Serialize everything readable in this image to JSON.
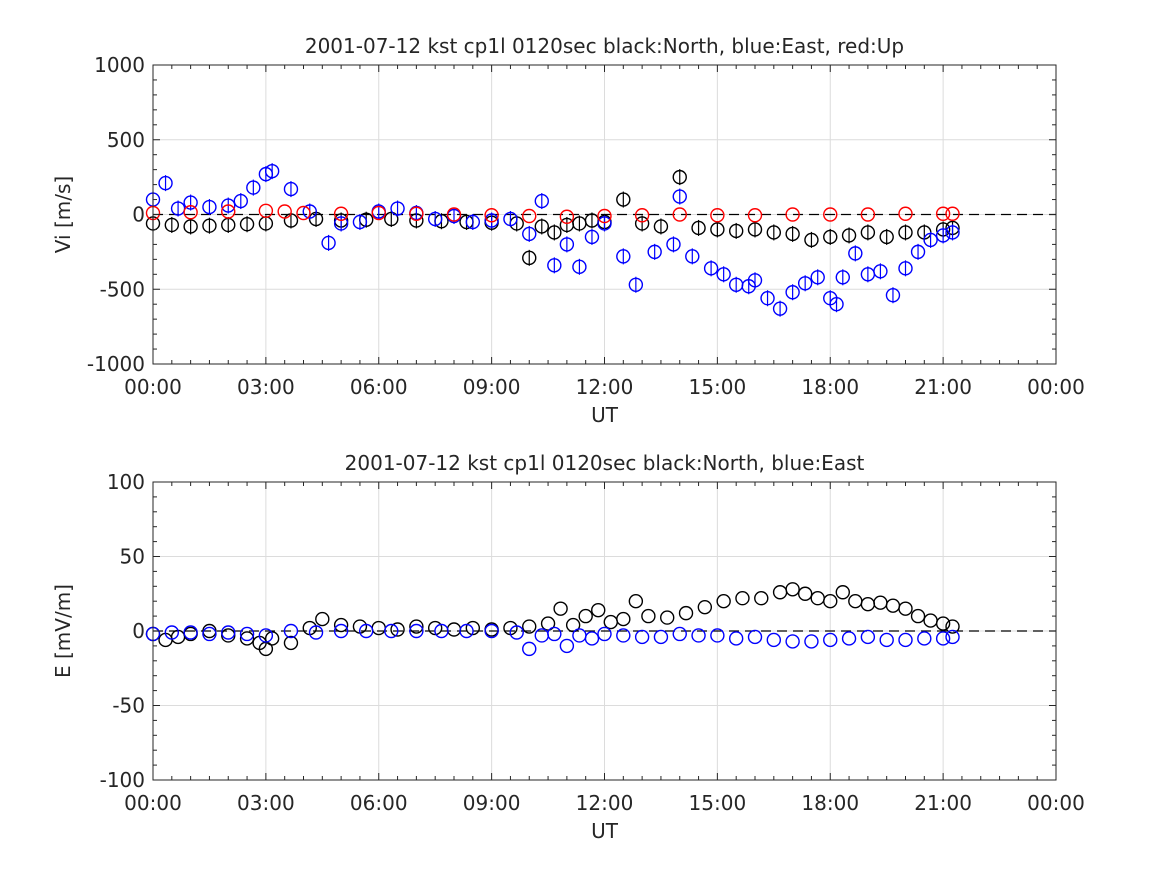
{
  "chart_data": [
    {
      "type": "scatter",
      "title": "2001-07-12 kst cp1l 0120sec black:North, blue:East, red:Up",
      "xlabel": "UT",
      "ylabel": "Vi [m/s]",
      "ylim": [
        -1000,
        1000
      ],
      "yticks": [
        "1000",
        "500",
        "0",
        "-500",
        "-1000"
      ],
      "ytick_values": [
        1000,
        500,
        0,
        -500,
        -1000
      ],
      "xlim_hours": [
        0,
        24
      ],
      "xticks": [
        "00:00",
        "03:00",
        "06:00",
        "09:00",
        "12:00",
        "15:00",
        "18:00",
        "21:00",
        "00:00"
      ],
      "grid": true,
      "zero_line": "dashed",
      "marker": "open circle with error bar",
      "series": [
        {
          "color": "#000000",
          "x": [
            "00:00",
            "00:30",
            "01:00",
            "01:30",
            "02:00",
            "02:30",
            "03:00",
            "03:40",
            "04:20",
            "05:00",
            "05:40",
            "06:20",
            "07:00",
            "07:40",
            "08:20",
            "09:00",
            "09:40",
            "10:00",
            "10:20",
            "10:40",
            "11:00",
            "11:20",
            "11:40",
            "12:00",
            "12:30",
            "13:00",
            "13:30",
            "14:00",
            "14:30",
            "15:00",
            "15:30",
            "16:00",
            "16:30",
            "17:00",
            "17:30",
            "18:00",
            "18:30",
            "19:00",
            "19:30",
            "20:00",
            "20:30",
            "21:00",
            "21:15"
          ],
          "y": [
            -60,
            -70,
            -80,
            -75,
            -70,
            -65,
            -60,
            -40,
            -30,
            -40,
            -35,
            -30,
            -40,
            -45,
            -50,
            -55,
            -60,
            -290,
            -80,
            -120,
            -70,
            -60,
            -40,
            -50,
            100,
            -60,
            -80,
            250,
            -90,
            -100,
            -110,
            -100,
            -120,
            -130,
            -170,
            -150,
            -140,
            -120,
            -150,
            -120,
            -120,
            -100,
            -90
          ]
        },
        {
          "color": "#0000ff",
          "x": [
            "00:00",
            "00:20",
            "00:40",
            "01:00",
            "01:30",
            "02:00",
            "02:20",
            "02:40",
            "03:00",
            "03:10",
            "03:40",
            "04:10",
            "04:40",
            "05:00",
            "05:30",
            "06:00",
            "06:30",
            "07:00",
            "07:30",
            "08:00",
            "08:30",
            "09:00",
            "09:30",
            "10:00",
            "10:20",
            "10:40",
            "11:00",
            "11:20",
            "11:40",
            "12:00",
            "12:30",
            "12:50",
            "13:20",
            "13:50",
            "14:00",
            "14:20",
            "14:50",
            "15:10",
            "15:30",
            "15:50",
            "16:00",
            "16:20",
            "16:40",
            "17:00",
            "17:20",
            "17:40",
            "18:00",
            "18:10",
            "18:20",
            "18:40",
            "19:00",
            "19:20",
            "19:40",
            "20:00",
            "20:20",
            "20:40",
            "21:00",
            "21:15"
          ],
          "y": [
            100,
            210,
            40,
            80,
            50,
            60,
            90,
            180,
            270,
            290,
            170,
            20,
            -190,
            -60,
            -50,
            20,
            40,
            10,
            -30,
            -10,
            -50,
            -40,
            -30,
            -130,
            90,
            -340,
            -200,
            -350,
            -150,
            -60,
            -280,
            -470,
            -250,
            -200,
            120,
            -280,
            -360,
            -400,
            -470,
            -480,
            -440,
            -560,
            -630,
            -520,
            -460,
            -420,
            -560,
            -600,
            -420,
            -260,
            -400,
            -380,
            -540,
            -360,
            -250,
            -170,
            -140,
            -120
          ]
        },
        {
          "color": "#ff0000",
          "x": [
            "00:00",
            "01:00",
            "02:00",
            "03:00",
            "03:30",
            "04:00",
            "05:00",
            "06:00",
            "07:00",
            "08:00",
            "09:00",
            "10:00",
            "11:00",
            "12:00",
            "13:00",
            "14:00",
            "15:00",
            "16:00",
            "17:00",
            "18:00",
            "19:00",
            "20:00",
            "21:00",
            "21:15"
          ],
          "y": [
            10,
            15,
            20,
            25,
            20,
            10,
            5,
            10,
            5,
            0,
            -5,
            -10,
            -15,
            -10,
            -5,
            0,
            -5,
            -5,
            0,
            0,
            0,
            5,
            5,
            5
          ]
        }
      ]
    },
    {
      "type": "scatter",
      "title": "2001-07-12 kst cp1l 0120sec black:North, blue:East",
      "xlabel": "UT",
      "ylabel": "E [mV/m]",
      "ylim": [
        -100,
        100
      ],
      "yticks": [
        "100",
        "50",
        "0",
        "-50",
        "-100"
      ],
      "ytick_values": [
        100,
        50,
        0,
        -50,
        -100
      ],
      "xlim_hours": [
        0,
        24
      ],
      "xticks": [
        "00:00",
        "03:00",
        "06:00",
        "09:00",
        "12:00",
        "15:00",
        "18:00",
        "21:00",
        "00:00"
      ],
      "grid": true,
      "zero_line": "dashed",
      "marker": "open circle",
      "series": [
        {
          "color": "#000000",
          "x": [
            "00:00",
            "00:20",
            "00:40",
            "01:00",
            "01:30",
            "02:00",
            "02:30",
            "02:50",
            "03:00",
            "03:10",
            "03:40",
            "04:10",
            "04:30",
            "05:00",
            "05:30",
            "06:00",
            "06:30",
            "07:00",
            "07:30",
            "08:00",
            "08:30",
            "09:00",
            "09:30",
            "10:00",
            "10:30",
            "10:50",
            "11:10",
            "11:30",
            "11:50",
            "12:10",
            "12:30",
            "12:50",
            "13:10",
            "13:40",
            "14:10",
            "14:40",
            "15:10",
            "15:40",
            "16:10",
            "16:40",
            "17:00",
            "17:20",
            "17:40",
            "18:00",
            "18:20",
            "18:40",
            "19:00",
            "19:20",
            "19:40",
            "20:00",
            "20:20",
            "20:40",
            "21:00",
            "21:15"
          ],
          "y": [
            -2,
            -6,
            -4,
            -2,
            0,
            -3,
            -5,
            -8,
            -12,
            -5,
            -8,
            2,
            8,
            4,
            3,
            2,
            1,
            3,
            2,
            1,
            2,
            1,
            2,
            3,
            5,
            15,
            4,
            10,
            14,
            6,
            8,
            20,
            10,
            9,
            12,
            16,
            20,
            22,
            22,
            26,
            28,
            25,
            22,
            20,
            26,
            20,
            18,
            19,
            17,
            15,
            10,
            7,
            5,
            3
          ]
        },
        {
          "color": "#0000ff",
          "x": [
            "00:00",
            "00:30",
            "01:00",
            "01:30",
            "02:00",
            "02:30",
            "03:00",
            "03:40",
            "04:20",
            "05:00",
            "05:40",
            "06:20",
            "07:00",
            "07:40",
            "08:20",
            "09:00",
            "09:40",
            "10:00",
            "10:20",
            "10:40",
            "11:00",
            "11:20",
            "11:40",
            "12:00",
            "12:30",
            "13:00",
            "13:30",
            "14:00",
            "14:30",
            "15:00",
            "15:30",
            "16:00",
            "16:30",
            "17:00",
            "17:30",
            "18:00",
            "18:30",
            "19:00",
            "19:30",
            "20:00",
            "20:30",
            "21:00",
            "21:15"
          ],
          "y": [
            -2,
            -1,
            -1,
            -2,
            -1,
            -2,
            -3,
            0,
            -1,
            0,
            0,
            0,
            0,
            0,
            0,
            0,
            -1,
            -12,
            -3,
            -2,
            -10,
            -3,
            -5,
            -2,
            -3,
            -4,
            -4,
            -2,
            -3,
            -3,
            -5,
            -4,
            -6,
            -7,
            -7,
            -6,
            -5,
            -4,
            -6,
            -6,
            -5,
            -5,
            -4
          ]
        }
      ]
    }
  ]
}
